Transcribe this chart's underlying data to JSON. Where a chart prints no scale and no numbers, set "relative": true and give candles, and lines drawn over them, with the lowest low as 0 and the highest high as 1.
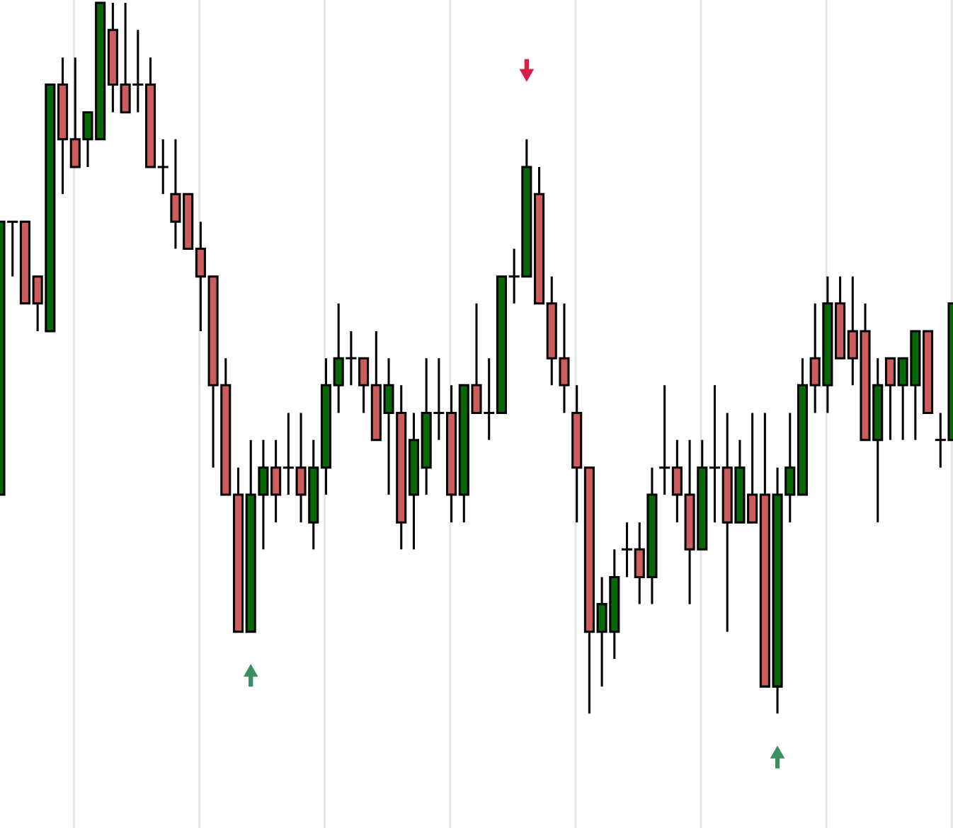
{
  "chart_data": {
    "type": "candlestick",
    "relative": true,
    "categories": [
      null,
      null,
      null,
      null,
      null,
      null,
      null,
      null,
      null,
      null,
      null,
      null,
      null,
      null,
      null,
      null,
      null,
      null,
      null,
      null,
      null,
      null,
      null,
      null,
      null,
      null,
      null,
      null,
      null,
      null,
      null,
      null,
      null,
      null,
      null,
      null,
      null,
      null,
      null,
      null,
      null,
      null,
      null,
      null,
      null,
      null,
      null,
      null,
      null,
      null,
      null,
      null,
      null,
      null,
      null,
      null,
      null,
      null,
      null,
      null,
      null,
      null,
      null,
      null,
      null,
      null,
      null,
      null,
      null,
      null,
      null,
      null,
      null,
      null,
      null,
      null,
      null
    ],
    "ohlc": [
      [
        0.308,
        0.692,
        0.308,
        0.692
      ],
      [
        0.692,
        0.692,
        0.615,
        0.692
      ],
      [
        0.692,
        0.692,
        0.577,
        0.577
      ],
      [
        0.615,
        0.615,
        0.538,
        0.577
      ],
      [
        0.538,
        0.885,
        0.538,
        0.885
      ],
      [
        0.885,
        0.923,
        0.731,
        0.808
      ],
      [
        0.808,
        0.923,
        0.769,
        0.769
      ],
      [
        0.808,
        0.846,
        0.769,
        0.846
      ],
      [
        0.808,
        1,
        0.808,
        1
      ],
      [
        0.962,
        1,
        0.846,
        0.885
      ],
      [
        0.885,
        1,
        0.846,
        0.846
      ],
      [
        0.885,
        0.962,
        0.846,
        0.885
      ],
      [
        0.885,
        0.923,
        0.769,
        0.769
      ],
      [
        0.769,
        0.808,
        0.731,
        0.769
      ],
      [
        0.731,
        0.808,
        0.654,
        0.692
      ],
      [
        0.731,
        0.731,
        0.654,
        0.654
      ],
      [
        0.654,
        0.692,
        0.538,
        0.615
      ],
      [
        0.615,
        0.615,
        0.346,
        0.462
      ],
      [
        0.462,
        0.5,
        0.308,
        0.308
      ],
      [
        0.308,
        0.346,
        0.115,
        0.115
      ],
      [
        0.115,
        0.385,
        0.115,
        0.308
      ],
      [
        0.308,
        0.385,
        0.231,
        0.346
      ],
      [
        0.346,
        0.385,
        0.269,
        0.308
      ],
      [
        0.346,
        0.423,
        0.308,
        0.346
      ],
      [
        0.346,
        0.423,
        0.269,
        0.308
      ],
      [
        0.269,
        0.385,
        0.231,
        0.346
      ],
      [
        0.346,
        0.5,
        0.308,
        0.462
      ],
      [
        0.462,
        0.577,
        0.423,
        0.5
      ],
      [
        0.5,
        0.538,
        0.462,
        0.5
      ],
      [
        0.5,
        0.5,
        0.423,
        0.462
      ],
      [
        0.462,
        0.538,
        0.385,
        0.385
      ],
      [
        0.423,
        0.5,
        0.308,
        0.462
      ],
      [
        0.423,
        0.462,
        0.231,
        0.269
      ],
      [
        0.308,
        0.423,
        0.231,
        0.385
      ],
      [
        0.346,
        0.5,
        0.308,
        0.423
      ],
      [
        0.423,
        0.5,
        0.385,
        0.423
      ],
      [
        0.423,
        0.462,
        0.269,
        0.308
      ],
      [
        0.308,
        0.462,
        0.269,
        0.462
      ],
      [
        0.462,
        0.577,
        0.423,
        0.423
      ],
      [
        0.423,
        0.5,
        0.385,
        0.423
      ],
      [
        0.423,
        0.615,
        0.423,
        0.615
      ],
      [
        0.615,
        0.654,
        0.577,
        0.615
      ],
      [
        0.615,
        0.808,
        0.615,
        0.769
      ],
      [
        0.731,
        0.769,
        0.577,
        0.577
      ],
      [
        0.577,
        0.615,
        0.462,
        0.5
      ],
      [
        0.5,
        0.577,
        0.423,
        0.462
      ],
      [
        0.423,
        0.462,
        0.269,
        0.346
      ],
      [
        0.346,
        0.346,
        0,
        0.115
      ],
      [
        0.115,
        0.192,
        0.038,
        0.154
      ],
      [
        0.115,
        0.231,
        0.077,
        0.192
      ],
      [
        0.231,
        0.269,
        0.192,
        0.231
      ],
      [
        0.231,
        0.269,
        0.154,
        0.192
      ],
      [
        0.192,
        0.346,
        0.154,
        0.308
      ],
      [
        0.346,
        0.462,
        0.308,
        0.346
      ],
      [
        0.346,
        0.385,
        0.269,
        0.308
      ],
      [
        0.308,
        0.385,
        0.154,
        0.231
      ],
      [
        0.231,
        0.385,
        0.231,
        0.346
      ],
      [
        0.346,
        0.462,
        0.269,
        0.346
      ],
      [
        0.346,
        0.423,
        0.115,
        0.269
      ],
      [
        0.269,
        0.385,
        0.269,
        0.346
      ],
      [
        0.308,
        0.423,
        0.269,
        0.269
      ],
      [
        0.308,
        0.423,
        0.038,
        0.038
      ],
      [
        0.038,
        0.346,
        0,
        0.308
      ],
      [
        0.308,
        0.423,
        0.269,
        0.346
      ],
      [
        0.308,
        0.5,
        0.308,
        0.462
      ],
      [
        0.5,
        0.577,
        0.423,
        0.462
      ],
      [
        0.462,
        0.615,
        0.423,
        0.577
      ],
      [
        0.577,
        0.615,
        0.5,
        0.5
      ],
      [
        0.538,
        0.615,
        0.462,
        0.5
      ],
      [
        0.538,
        0.577,
        0.385,
        0.385
      ],
      [
        0.385,
        0.5,
        0.269,
        0.462
      ],
      [
        0.5,
        0.5,
        0.385,
        0.462
      ],
      [
        0.462,
        0.5,
        0.385,
        0.5
      ],
      [
        0.462,
        0.538,
        0.385,
        0.538
      ],
      [
        0.538,
        0.538,
        0.423,
        0.423
      ],
      [
        0.385,
        0.423,
        0.346,
        0.385
      ],
      [
        0.385,
        0.577,
        0.385,
        0.577
      ]
    ],
    "colors": [
      "#086808",
      "#000000",
      "#cd5c5c",
      "#cd5c5c",
      "#086808",
      "#cd5c5c",
      "#cd5c5c",
      "#086808",
      "#086808",
      "#cd5c5c",
      "#cd5c5c",
      "#000000",
      "#cd5c5c",
      "#000000",
      "#cd5c5c",
      "#cd5c5c",
      "#cd5c5c",
      "#cd5c5c",
      "#cd5c5c",
      "#cd5c5c",
      "#086808",
      "#086808",
      "#cd5c5c",
      "#000000",
      "#cd5c5c",
      "#086808",
      "#086808",
      "#086808",
      "#000000",
      "#cd5c5c",
      "#cd5c5c",
      "#086808",
      "#cd5c5c",
      "#086808",
      "#086808",
      "#000000",
      "#cd5c5c",
      "#086808",
      "#cd5c5c",
      "#000000",
      "#086808",
      "#000000",
      "#086808",
      "#cd5c5c",
      "#cd5c5c",
      "#cd5c5c",
      "#cd5c5c",
      "#cd5c5c",
      "#086808",
      "#086808",
      "#000000",
      "#cd5c5c",
      "#086808",
      "#000000",
      "#cd5c5c",
      "#cd5c5c",
      "#086808",
      "#000000",
      "#cd5c5c",
      "#086808",
      "#cd5c5c",
      "#cd5c5c",
      "#086808",
      "#086808",
      "#086808",
      "#cd5c5c",
      "#086808",
      "#cd5c5c",
      "#cd5c5c",
      "#cd5c5c",
      "#086808",
      "#cd5c5c",
      "#086808",
      "#086808",
      "#cd5c5c",
      "#000000",
      "#086808"
    ],
    "grid": "x"
  }
}
